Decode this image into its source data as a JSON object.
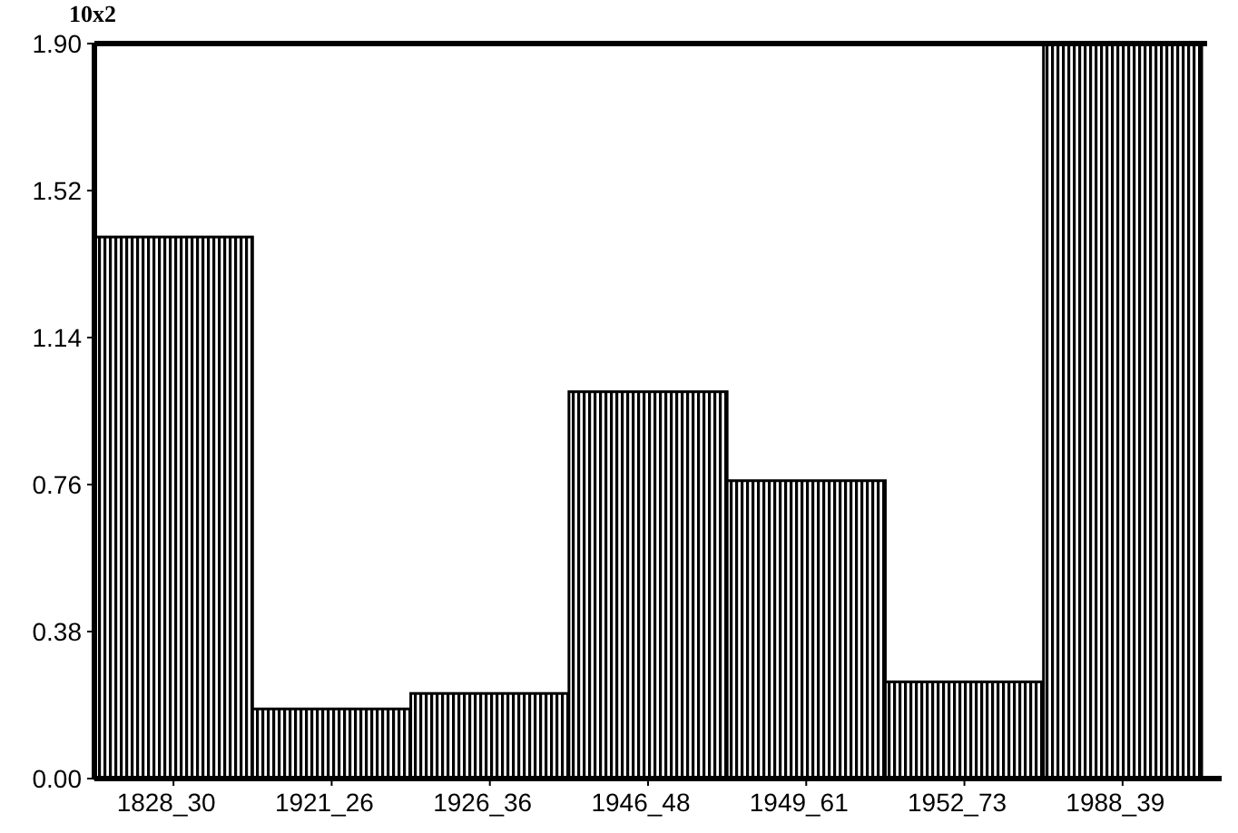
{
  "chart_data": {
    "type": "bar",
    "ylabel": "10x2",
    "categories": [
      "1828_30",
      "1921_26",
      "1926_36",
      "1946_48",
      "1949_61",
      "1952_73",
      "1988_39"
    ],
    "values": [
      1.4,
      0.18,
      0.22,
      1.0,
      0.77,
      0.25,
      1.9
    ],
    "color": "#000000",
    "ylim": [
      0,
      1.9
    ],
    "yticks": [
      {
        "value": 0,
        "label": "0.00"
      },
      0.38,
      0.76,
      1.14,
      1.52,
      {
        "value": 1.9,
        "label": "1.90"
      }
    ]
  }
}
